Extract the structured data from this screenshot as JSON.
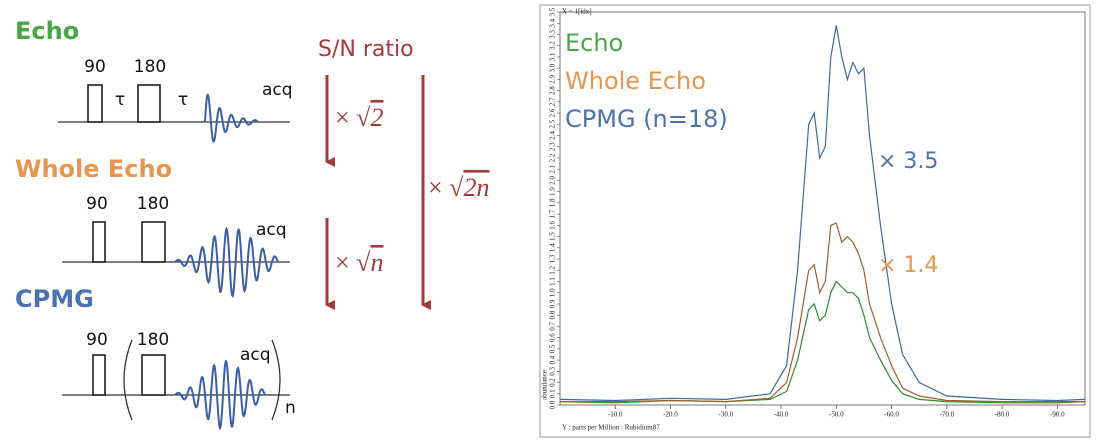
{
  "diagram": {
    "sn_title": "S/N ratio",
    "sections": [
      {
        "title": "Echo",
        "color": "#4aa54a",
        "pulse1": "90",
        "pulse2": "180",
        "tau1": "τ",
        "tau2": "τ",
        "acq": "acq"
      },
      {
        "title": "Whole Echo",
        "color": "#e8964f",
        "pulse1": "90",
        "pulse2": "180",
        "acq": "acq"
      },
      {
        "title": "CPMG",
        "color": "#4a72b0",
        "pulse1": "90",
        "pulse2": "180",
        "acq": "acq",
        "loop": "n"
      }
    ],
    "factors": [
      "× √2",
      "× √n",
      "× √2n"
    ]
  },
  "chart_data": {
    "type": "line",
    "x_label": "Y : parts per Million : Rubidium87",
    "y_label": "abundance",
    "corner_label": "X = 1[idx]",
    "x": [
      0,
      -10,
      -20,
      -30,
      -38,
      -41,
      -43,
      -45,
      -46,
      -47,
      -48,
      -49,
      -50,
      -51,
      -52,
      -53,
      -54,
      -55,
      -56,
      -58,
      -60,
      -62,
      -65,
      -70,
      -80,
      -90,
      -95
    ],
    "series": [
      {
        "name": "Echo",
        "color": "#2e8b2e",
        "legend_color": "#4aa54a",
        "values": [
          0.03,
          0.02,
          0.04,
          0.03,
          0.05,
          0.12,
          0.4,
          0.85,
          0.9,
          0.75,
          0.8,
          1.0,
          1.1,
          1.05,
          1.0,
          1.0,
          0.95,
          0.8,
          0.6,
          0.4,
          0.22,
          0.1,
          0.05,
          0.03,
          0.02,
          0.02,
          0.03
        ]
      },
      {
        "name": "Whole Echo",
        "color": "#a0602a",
        "legend_color": "#e8964f",
        "values": [
          0.03,
          0.03,
          0.04,
          0.03,
          0.06,
          0.2,
          0.6,
          1.2,
          1.25,
          1.0,
          1.1,
          1.6,
          1.62,
          1.45,
          1.5,
          1.45,
          1.35,
          1.2,
          0.9,
          0.6,
          0.35,
          0.15,
          0.08,
          0.04,
          0.03,
          0.03,
          0.03
        ]
      },
      {
        "name": "CPMG (n=18)",
        "color": "#3a6aa0",
        "legend_color": "#4a72b0",
        "values": [
          0.05,
          0.04,
          0.06,
          0.05,
          0.1,
          0.35,
          1.2,
          2.5,
          2.6,
          2.2,
          2.3,
          3.1,
          3.38,
          3.1,
          2.9,
          3.05,
          2.95,
          3.0,
          2.4,
          1.6,
          0.9,
          0.45,
          0.2,
          0.08,
          0.05,
          0.04,
          0.05
        ]
      }
    ],
    "annotations": [
      {
        "text": "× 3.5",
        "color": "#4a72b0"
      },
      {
        "text": "× 1.4",
        "color": "#e8964f"
      }
    ],
    "xlim": [
      0,
      -95
    ],
    "ylim": [
      0,
      3.5
    ],
    "xticks": [
      {
        "value": -10,
        "label": "-10.0"
      },
      {
        "value": -20,
        "label": "-20.0"
      },
      {
        "value": -30,
        "label": "-30.0"
      },
      {
        "value": -40,
        "label": "-40.0"
      },
      {
        "value": -50,
        "label": "-50.0"
      },
      {
        "value": -60,
        "label": "-60.0"
      },
      {
        "value": -70,
        "label": "-70.0"
      },
      {
        "value": -80,
        "label": "-80.0"
      },
      {
        "value": -90,
        "label": "-90.0"
      }
    ],
    "yticks": [
      {
        "value": 0,
        "label": "0.0"
      },
      0.1,
      0.2,
      0.3,
      0.4,
      0.5,
      0.6,
      0.7,
      0.8,
      0.9,
      {
        "value": 1,
        "label": "1.0"
      },
      1.1,
      1.2,
      1.3,
      1.4,
      1.5,
      1.6,
      1.7,
      1.8,
      1.9,
      {
        "value": 2,
        "label": "2.0"
      },
      2.1,
      2.2,
      2.3,
      2.4,
      2.5,
      2.6,
      2.7,
      2.8,
      2.9,
      {
        "value": 3,
        "label": "3.0"
      },
      3.1,
      3.2,
      3.3,
      3.4,
      3.5
    ]
  }
}
